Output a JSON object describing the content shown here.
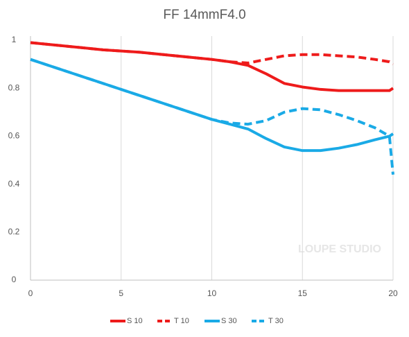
{
  "chart_data": {
    "type": "line",
    "title": "FF 14mmF4.0",
    "watermark": "LOUPE STUDIO",
    "x": [
      0,
      2,
      4,
      6,
      8,
      10,
      11,
      12,
      13,
      14,
      15,
      16,
      17,
      18,
      19,
      19.8,
      20
    ],
    "series": [
      {
        "name": "S 10",
        "color": "#ee1b1b",
        "dashed": false,
        "values": [
          0.99,
          0.975,
          0.96,
          0.95,
          0.935,
          0.92,
          0.91,
          0.895,
          0.86,
          0.82,
          0.805,
          0.795,
          0.79,
          0.79,
          0.79,
          0.79,
          0.8
        ]
      },
      {
        "name": "T 10",
        "color": "#ee1b1b",
        "dashed": true,
        "values": [
          0.99,
          0.975,
          0.96,
          0.95,
          0.935,
          0.92,
          0.91,
          0.905,
          0.92,
          0.935,
          0.94,
          0.94,
          0.935,
          0.93,
          0.92,
          0.91,
          0.9
        ]
      },
      {
        "name": "S 30",
        "color": "#1aaae6",
        "dashed": false,
        "values": [
          0.92,
          0.87,
          0.82,
          0.77,
          0.72,
          0.67,
          0.65,
          0.63,
          0.59,
          0.555,
          0.54,
          0.54,
          0.55,
          0.565,
          0.585,
          0.6,
          0.61
        ]
      },
      {
        "name": "T 30",
        "color": "#1aaae6",
        "dashed": true,
        "values": [
          0.92,
          0.87,
          0.82,
          0.77,
          0.72,
          0.67,
          0.655,
          0.65,
          0.665,
          0.7,
          0.715,
          0.71,
          0.69,
          0.665,
          0.635,
          0.6,
          0.44
        ]
      }
    ],
    "xlim": [
      0,
      20
    ],
    "xticks": [
      0,
      5,
      10,
      15,
      20
    ],
    "ylim": [
      0,
      1
    ],
    "yticks": [
      0,
      0.2,
      0.4,
      0.6,
      0.8,
      1
    ],
    "grid": "x",
    "legend": "bottom"
  }
}
